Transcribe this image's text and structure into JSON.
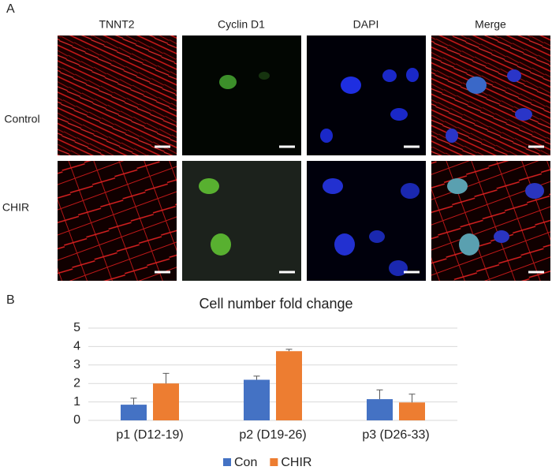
{
  "panel_a": {
    "label": "A",
    "columns": [
      "TNNT2",
      "Cyclin D1",
      "DAPI",
      "Merge"
    ],
    "rows": [
      "Control",
      "CHIR"
    ]
  },
  "panel_b": {
    "label": "B"
  },
  "chart_data": {
    "type": "bar",
    "title": "Cell number fold change",
    "categories": [
      "p1 (D12-19)",
      "p2 (D19-26)",
      "p3 (D26-33)"
    ],
    "series": [
      {
        "name": "Con",
        "color": "#4472c4",
        "values": [
          0.85,
          2.2,
          1.15
        ],
        "errors": [
          0.35,
          0.2,
          0.5
        ]
      },
      {
        "name": "CHIR",
        "color": "#ed7d31",
        "values": [
          2.0,
          3.75,
          0.97
        ],
        "errors": [
          0.55,
          0.1,
          0.45
        ]
      }
    ],
    "ylim": [
      0,
      5
    ],
    "yticks": [
      0,
      1,
      2,
      3,
      4,
      5
    ],
    "grid": true,
    "legend": "bottom"
  }
}
